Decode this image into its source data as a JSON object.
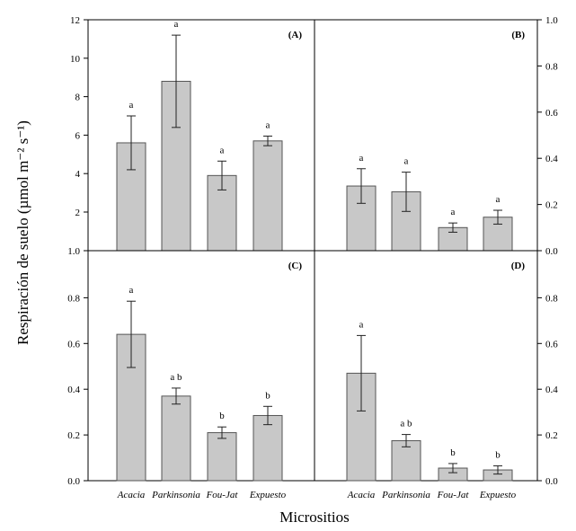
{
  "ylabel": "Respiración de suelo (µmol m⁻² s⁻¹)",
  "xlabel": "Micrositios",
  "chart_data": [
    {
      "type": "bar",
      "panel": "(A)",
      "categories": [
        "Acacia",
        "Parkinsonia",
        "Fou-Jat",
        "Expuesto"
      ],
      "values": [
        5.6,
        8.8,
        3.9,
        5.7
      ],
      "errors": [
        1.4,
        2.4,
        0.75,
        0.25
      ],
      "letters": [
        "a",
        "a",
        "a",
        "a"
      ],
      "ylim": [
        0,
        12
      ],
      "yticks": [
        "1.0",
        "2",
        "4",
        "6",
        "8",
        "10",
        "12"
      ],
      "yaxis_side": "left"
    },
    {
      "type": "bar",
      "panel": "(B)",
      "categories": [
        "Acacia",
        "Parkinsonia",
        "Fou-Jat",
        "Expuesto"
      ],
      "values": [
        0.28,
        0.255,
        0.1,
        0.145
      ],
      "errors": [
        0.075,
        0.085,
        0.02,
        0.03
      ],
      "letters": [
        "a",
        "a",
        "a",
        "a"
      ],
      "ylim": [
        0,
        1.0
      ],
      "yticks": [
        "0.0",
        "0.2",
        "0.4",
        "0.6",
        "0.8",
        "1.0"
      ],
      "yaxis_side": "right"
    },
    {
      "type": "bar",
      "panel": "(C)",
      "categories": [
        "Acacia",
        "Parkinsonia",
        "Fou-Jat",
        "Expuesto"
      ],
      "values": [
        0.64,
        0.37,
        0.21,
        0.285
      ],
      "errors": [
        0.145,
        0.035,
        0.025,
        0.04
      ],
      "letters": [
        "a",
        "a b",
        "b",
        "b"
      ],
      "ylim": [
        0,
        1.0
      ],
      "yticks": [
        "0.0",
        "0.2",
        "0.4",
        "0.6",
        "0.8"
      ],
      "yaxis_side": "left"
    },
    {
      "type": "bar",
      "panel": "(D)",
      "categories": [
        "Acacia",
        "Parkinsonia",
        "Fou-Jat",
        "Expuesto"
      ],
      "values": [
        0.47,
        0.175,
        0.055,
        0.047
      ],
      "errors": [
        0.165,
        0.027,
        0.02,
        0.018
      ],
      "letters": [
        "a",
        "a b",
        "b",
        "b"
      ],
      "ylim": [
        0,
        1.0
      ],
      "yticks": [
        "0.0",
        "0.2",
        "0.4",
        "0.6",
        "0.8"
      ],
      "yaxis_side": "right"
    }
  ],
  "colors": {
    "bar_fill": "#c8c8c8",
    "bar_stroke": "#555555",
    "axis": "#000000"
  }
}
